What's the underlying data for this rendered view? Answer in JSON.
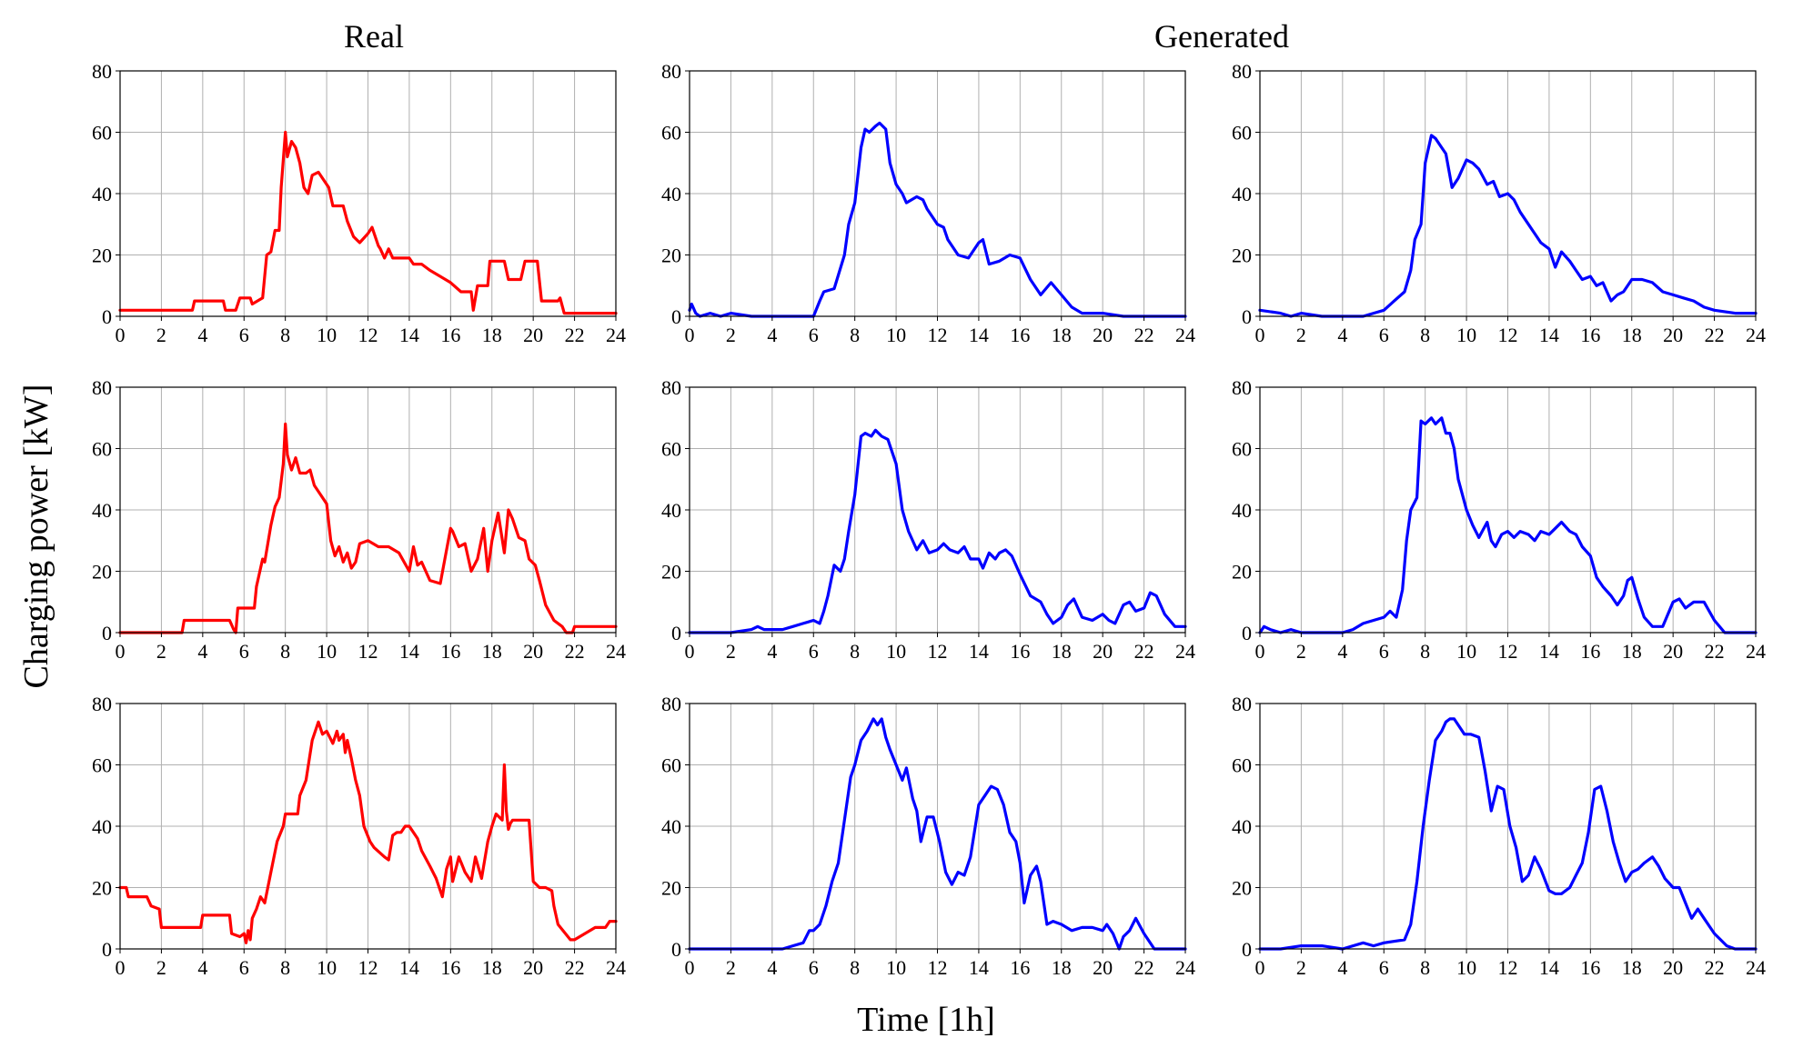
{
  "figure": {
    "column_titles": [
      "Real",
      "Generated"
    ],
    "ylabel": "Charging power [kW]",
    "xlabel": "Time [1h]",
    "colors": {
      "real": "#ff0000",
      "generated": "#0000ff",
      "grid": "#b0b0b0"
    }
  },
  "chart_data": [
    {
      "type": "line",
      "panel": "real-1",
      "title": "Real",
      "xlim": [
        0,
        24
      ],
      "ylim": [
        0,
        80
      ],
      "grid": true,
      "color": "#ff0000",
      "x": [
        0,
        3.5,
        3.6,
        5,
        5.1,
        5.6,
        5.8,
        6.3,
        6.4,
        6.9,
        7.1,
        7.3,
        7.5,
        7.7,
        7.8,
        8,
        8.1,
        8.3,
        8.5,
        8.7,
        8.9,
        9.1,
        9.3,
        9.6,
        9.9,
        10.1,
        10.3,
        10.8,
        11,
        11.3,
        11.6,
        12,
        12.2,
        12.5,
        12.6,
        12.8,
        13,
        13.2,
        14,
        14.2,
        14.6,
        15,
        15.5,
        16,
        16.5,
        17,
        17.1,
        17.3,
        17.8,
        17.9,
        18.6,
        18.8,
        19.4,
        19.6,
        20.2,
        20.4,
        21,
        21.2,
        21.3,
        21.5,
        22,
        24
      ],
      "values": [
        2,
        2,
        5,
        5,
        2,
        2,
        6,
        6,
        4,
        6,
        20,
        21,
        28,
        28,
        42,
        60,
        52,
        57,
        55,
        50,
        42,
        40,
        46,
        47,
        44,
        42,
        36,
        36,
        31,
        26,
        24,
        27,
        29,
        23,
        22,
        19,
        22,
        19,
        19,
        17,
        17,
        15,
        13,
        11,
        8,
        8,
        2,
        10,
        10,
        18,
        18,
        12,
        12,
        18,
        18,
        5,
        5,
        5,
        6,
        1,
        1,
        1
      ]
    },
    {
      "type": "line",
      "panel": "gen-a-1",
      "title": "Generated",
      "xlim": [
        0,
        24
      ],
      "ylim": [
        0,
        80
      ],
      "grid": true,
      "color": "#0000ff",
      "x": [
        0,
        0.1,
        0.3,
        0.5,
        1,
        1.5,
        2,
        3,
        4,
        5,
        6,
        6.3,
        6.5,
        7,
        7.5,
        7.7,
        8,
        8.3,
        8.5,
        8.7,
        9,
        9.2,
        9.5,
        9.7,
        10,
        10.3,
        10.5,
        11,
        11.3,
        11.5,
        12,
        12.3,
        12.5,
        13,
        13.5,
        14,
        14.2,
        14.5,
        15,
        15.5,
        16,
        16.5,
        17,
        17.5,
        18,
        18.5,
        19,
        19.5,
        20,
        21,
        22,
        23,
        24
      ],
      "values": [
        2,
        4,
        1,
        0,
        1,
        0,
        1,
        0,
        0,
        0,
        0,
        5,
        8,
        9,
        20,
        30,
        37,
        55,
        61,
        60,
        62,
        63,
        61,
        50,
        43,
        40,
        37,
        39,
        38,
        35,
        30,
        29,
        25,
        20,
        19,
        24,
        25,
        17,
        18,
        20,
        19,
        12,
        7,
        11,
        7,
        3,
        1,
        1,
        1,
        0,
        0,
        0,
        0
      ]
    },
    {
      "type": "line",
      "panel": "gen-b-1",
      "title": "Generated",
      "xlim": [
        0,
        24
      ],
      "ylim": [
        0,
        80
      ],
      "grid": true,
      "color": "#0000ff",
      "x": [
        0,
        1,
        1.5,
        2,
        3,
        4,
        5,
        5.5,
        6,
        6.5,
        7,
        7.3,
        7.5,
        7.8,
        8,
        8.3,
        8.5,
        8.8,
        9,
        9.3,
        9.6,
        10,
        10.3,
        10.6,
        11,
        11.3,
        11.6,
        12,
        12.3,
        12.6,
        13,
        13.3,
        13.6,
        14,
        14.3,
        14.6,
        15,
        15.3,
        15.6,
        16,
        16.3,
        16.6,
        17,
        17.3,
        17.6,
        18,
        18.5,
        19,
        19.5,
        20,
        20.5,
        21,
        21.5,
        22,
        23,
        24
      ],
      "values": [
        2,
        1,
        0,
        1,
        0,
        0,
        0,
        1,
        2,
        5,
        8,
        15,
        25,
        30,
        50,
        59,
        58,
        55,
        53,
        42,
        45,
        51,
        50,
        48,
        43,
        44,
        39,
        40,
        38,
        34,
        30,
        27,
        24,
        22,
        16,
        21,
        18,
        15,
        12,
        13,
        10,
        11,
        5,
        7,
        8,
        12,
        12,
        11,
        8,
        7,
        6,
        5,
        3,
        2,
        1,
        1
      ]
    },
    {
      "type": "line",
      "panel": "real-2",
      "title": "Real",
      "xlim": [
        0,
        24
      ],
      "ylim": [
        0,
        80
      ],
      "grid": true,
      "color": "#ff0000",
      "x": [
        0,
        3,
        3.1,
        5.3,
        5.5,
        5.6,
        5.7,
        6.5,
        6.6,
        6.9,
        7,
        7.3,
        7.5,
        7.7,
        7.9,
        8,
        8.1,
        8.3,
        8.5,
        8.7,
        9,
        9.2,
        9.4,
        9.7,
        10,
        10.2,
        10.4,
        10.6,
        10.8,
        11,
        11.2,
        11.4,
        11.6,
        12,
        12.5,
        13,
        13.5,
        14,
        14.2,
        14.4,
        14.6,
        15,
        15.5,
        16,
        16.1,
        16.4,
        16.7,
        17,
        17.3,
        17.6,
        17.8,
        18,
        18.3,
        18.6,
        18.8,
        19,
        19.3,
        19.6,
        19.8,
        20.1,
        20.3,
        20.6,
        21,
        21.4,
        21.6,
        21.9,
        22,
        24
      ],
      "values": [
        0,
        0,
        4,
        4,
        1,
        0,
        8,
        8,
        15,
        24,
        23,
        35,
        41,
        44,
        55,
        68,
        58,
        53,
        57,
        52,
        52,
        53,
        48,
        45,
        42,
        30,
        25,
        28,
        23,
        26,
        21,
        23,
        29,
        30,
        28,
        28,
        26,
        20,
        28,
        22,
        23,
        17,
        16,
        34,
        33,
        28,
        29,
        20,
        24,
        34,
        20,
        30,
        39,
        26,
        40,
        37,
        31,
        30,
        24,
        22,
        17,
        9,
        4,
        2,
        0,
        0,
        2,
        2
      ]
    },
    {
      "type": "line",
      "panel": "gen-a-2",
      "title": "Generated",
      "xlim": [
        0,
        24
      ],
      "ylim": [
        0,
        80
      ],
      "grid": true,
      "color": "#0000ff",
      "x": [
        0,
        1,
        2,
        3,
        3.3,
        3.6,
        4,
        4.5,
        5,
        5.5,
        6,
        6.3,
        6.5,
        6.7,
        7,
        7.3,
        7.5,
        7.7,
        8,
        8.3,
        8.5,
        8.8,
        9,
        9.3,
        9.6,
        10,
        10.3,
        10.6,
        11,
        11.3,
        11.6,
        12,
        12.3,
        12.6,
        13,
        13.3,
        13.6,
        14,
        14.2,
        14.5,
        14.8,
        15,
        15.3,
        15.6,
        16,
        16.5,
        17,
        17.3,
        17.6,
        18,
        18.3,
        18.6,
        19,
        19.5,
        20,
        20.3,
        20.6,
        21,
        21.3,
        21.6,
        22,
        22.3,
        22.6,
        23,
        23.5,
        24
      ],
      "values": [
        0,
        0,
        0,
        1,
        2,
        1,
        1,
        1,
        2,
        3,
        4,
        3,
        7,
        12,
        22,
        20,
        24,
        33,
        45,
        64,
        65,
        64,
        66,
        64,
        63,
        55,
        40,
        33,
        27,
        30,
        26,
        27,
        29,
        27,
        26,
        28,
        24,
        24,
        21,
        26,
        24,
        26,
        27,
        25,
        19,
        12,
        10,
        6,
        3,
        5,
        9,
        11,
        5,
        4,
        6,
        4,
        3,
        9,
        10,
        7,
        8,
        13,
        12,
        6,
        2,
        2
      ]
    },
    {
      "type": "line",
      "panel": "gen-b-2",
      "title": "Generated",
      "xlim": [
        0,
        24
      ],
      "ylim": [
        0,
        80
      ],
      "grid": true,
      "color": "#0000ff",
      "x": [
        0,
        0.2,
        0.5,
        1,
        1.5,
        2,
        3,
        4,
        4.5,
        5,
        5.5,
        6,
        6.3,
        6.6,
        6.9,
        7.1,
        7.3,
        7.6,
        7.8,
        8,
        8.3,
        8.5,
        8.8,
        9,
        9.2,
        9.4,
        9.6,
        10,
        10.3,
        10.6,
        11,
        11.2,
        11.4,
        11.7,
        12,
        12.3,
        12.6,
        13,
        13.3,
        13.6,
        14,
        14.3,
        14.6,
        15,
        15.3,
        15.6,
        16,
        16.3,
        16.6,
        17,
        17.3,
        17.6,
        17.8,
        18,
        18.3,
        18.6,
        19,
        19.5,
        20,
        20.3,
        20.6,
        21,
        21.5,
        22,
        22.5,
        24
      ],
      "values": [
        0,
        2,
        1,
        0,
        1,
        0,
        0,
        0,
        1,
        3,
        4,
        5,
        7,
        5,
        14,
        30,
        40,
        44,
        69,
        68,
        70,
        68,
        70,
        65,
        65,
        60,
        50,
        40,
        35,
        31,
        36,
        30,
        28,
        32,
        33,
        31,
        33,
        32,
        30,
        33,
        32,
        34,
        36,
        33,
        32,
        28,
        25,
        18,
        15,
        12,
        9,
        12,
        17,
        18,
        11,
        5,
        2,
        2,
        10,
        11,
        8,
        10,
        10,
        4,
        0,
        0
      ]
    },
    {
      "type": "line",
      "panel": "real-3",
      "title": "Real",
      "xlim": [
        0,
        24
      ],
      "ylim": [
        0,
        80
      ],
      "grid": true,
      "color": "#ff0000",
      "x": [
        0,
        0.3,
        0.4,
        1.3,
        1.5,
        1.9,
        2,
        3.9,
        4,
        5.3,
        5.4,
        5.8,
        6,
        6.1,
        6.2,
        6.3,
        6.4,
        6.6,
        6.8,
        7,
        7.3,
        7.6,
        7.9,
        8,
        8.6,
        8.7,
        9,
        9.3,
        9.6,
        9.8,
        10,
        10.3,
        10.5,
        10.6,
        10.8,
        10.9,
        11,
        11.2,
        11.4,
        11.6,
        11.8,
        12.1,
        12.3,
        12.8,
        13,
        13.2,
        13.4,
        13.6,
        13.8,
        14,
        14.2,
        14.4,
        14.6,
        15,
        15.3,
        15.6,
        15.8,
        16,
        16.1,
        16.4,
        16.7,
        17,
        17.2,
        17.5,
        17.8,
        18,
        18.2,
        18.5,
        18.6,
        18.7,
        18.8,
        18.9,
        19,
        19.2,
        19.3,
        19.5,
        19.8,
        20,
        20.3,
        20.6,
        20.9,
        21,
        21.2,
        21.8,
        22,
        22,
        23,
        23.1,
        23.5,
        23.7,
        24
      ],
      "values": [
        20,
        20,
        17,
        17,
        14,
        13,
        7,
        7,
        11,
        11,
        5,
        4,
        5,
        2,
        6,
        3,
        10,
        13,
        17,
        15,
        25,
        35,
        40,
        44,
        44,
        50,
        55,
        68,
        74,
        70,
        71,
        67,
        71,
        68,
        70,
        64,
        68,
        62,
        55,
        50,
        40,
        35,
        33,
        30,
        29,
        37,
        38,
        38,
        40,
        40,
        38,
        36,
        32,
        27,
        23,
        17,
        26,
        30,
        22,
        30,
        25,
        22,
        30,
        23,
        35,
        40,
        44,
        42,
        60,
        45,
        39,
        41,
        42,
        42,
        42,
        42,
        42,
        22,
        20,
        20,
        19,
        14,
        8,
        3,
        3,
        3,
        7,
        7,
        7,
        9,
        9
      ]
    },
    {
      "type": "line",
      "panel": "gen-a-3",
      "title": "Generated",
      "xlim": [
        0,
        24
      ],
      "ylim": [
        0,
        80
      ],
      "grid": true,
      "color": "#0000ff",
      "x": [
        0,
        1,
        2,
        3,
        4,
        4.5,
        5,
        5.5,
        5.8,
        6,
        6.3,
        6.6,
        6.9,
        7.2,
        7.5,
        7.8,
        8,
        8.3,
        8.6,
        8.9,
        9.1,
        9.3,
        9.5,
        9.7,
        10,
        10.3,
        10.5,
        10.8,
        11,
        11.2,
        11.5,
        11.8,
        12.1,
        12.4,
        12.7,
        13,
        13.3,
        13.6,
        14,
        14.3,
        14.6,
        14.9,
        15.2,
        15.5,
        15.8,
        16,
        16.2,
        16.5,
        16.8,
        17,
        17.3,
        17.6,
        18,
        18.5,
        19,
        19.5,
        20,
        20.2,
        20.5,
        20.8,
        21,
        21.3,
        21.6,
        22,
        22.5,
        24
      ],
      "values": [
        0,
        0,
        0,
        0,
        0,
        0,
        1,
        2,
        6,
        6,
        8,
        14,
        22,
        28,
        42,
        56,
        60,
        68,
        71,
        75,
        73,
        75,
        69,
        65,
        60,
        55,
        59,
        49,
        45,
        35,
        43,
        43,
        35,
        25,
        21,
        25,
        24,
        30,
        47,
        50,
        53,
        52,
        47,
        38,
        35,
        28,
        15,
        24,
        27,
        22,
        8,
        9,
        8,
        6,
        7,
        7,
        6,
        8,
        5,
        0,
        4,
        6,
        10,
        5,
        0,
        0
      ]
    },
    {
      "type": "line",
      "panel": "gen-b-3",
      "title": "Generated",
      "xlim": [
        0,
        24
      ],
      "ylim": [
        0,
        80
      ],
      "grid": true,
      "color": "#0000ff",
      "x": [
        0,
        1,
        2,
        3,
        4,
        5,
        5.5,
        6,
        7,
        7.3,
        7.6,
        7.9,
        8.2,
        8.5,
        8.8,
        9,
        9.2,
        9.4,
        9.6,
        9.9,
        10.2,
        10.6,
        10.9,
        11.2,
        11.5,
        11.8,
        12.1,
        12.4,
        12.7,
        13,
        13.3,
        13.6,
        14,
        14.3,
        14.6,
        15,
        15.3,
        15.6,
        15.9,
        16.2,
        16.5,
        16.8,
        17.1,
        17.4,
        17.7,
        18,
        18.3,
        18.6,
        19,
        19.3,
        19.6,
        20,
        20.3,
        20.6,
        20.9,
        21.2,
        21.5,
        21.8,
        22,
        22.3,
        22.6,
        23,
        24
      ],
      "values": [
        0,
        0,
        1,
        1,
        0,
        2,
        1,
        2,
        3,
        8,
        22,
        40,
        55,
        68,
        71,
        74,
        75,
        75,
        73,
        70,
        70,
        69,
        58,
        45,
        53,
        52,
        40,
        33,
        22,
        24,
        30,
        26,
        19,
        18,
        18,
        20,
        24,
        28,
        38,
        52,
        53,
        45,
        35,
        28,
        22,
        25,
        26,
        28,
        30,
        27,
        23,
        20,
        20,
        15,
        10,
        13,
        10,
        7,
        5,
        3,
        1,
        0,
        0
      ]
    }
  ]
}
